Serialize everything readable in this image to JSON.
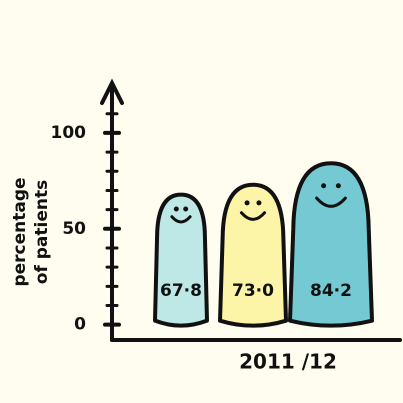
{
  "chart_data": {
    "type": "bar",
    "categories": [
      "2011 /12"
    ],
    "y_label": [
      "percentage",
      "of patients"
    ],
    "series": [
      {
        "color": "#bde8e6",
        "values": [
          67.8
        ],
        "value_labels": [
          "67·8"
        ]
      },
      {
        "color": "#fcf5a8",
        "values": [
          73.0
        ],
        "value_labels": [
          "73·0"
        ]
      },
      {
        "color": "#74c9d2",
        "values": [
          84.2
        ],
        "value_labels": [
          "84·2"
        ]
      }
    ],
    "ylim": [
      -8,
      125
    ],
    "yticks": [
      0,
      50,
      100
    ],
    "minor_yticks": [
      10,
      20,
      30,
      40,
      60,
      70,
      80,
      90,
      110
    ]
  }
}
